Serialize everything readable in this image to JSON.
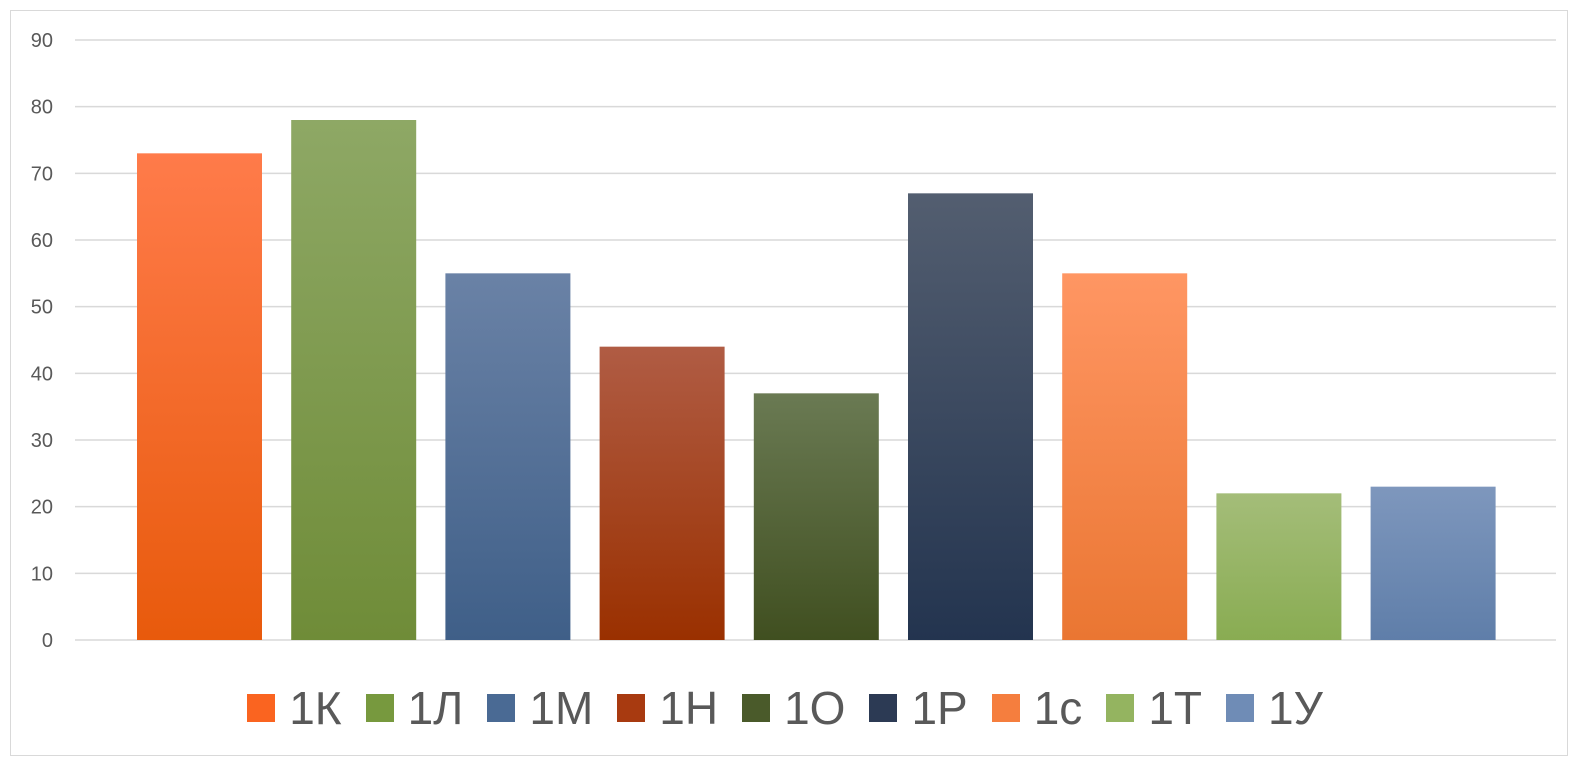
{
  "chart_data": {
    "type": "bar",
    "categories": [
      "1К",
      "1Л",
      "1М",
      "1Н",
      "1О",
      "1Р",
      "1с",
      "1Т",
      "1У"
    ],
    "values": [
      73,
      78,
      55,
      44,
      37,
      67,
      55,
      22,
      23
    ],
    "ylim": [
      0,
      90
    ],
    "yticks": [
      0,
      10,
      20,
      30,
      40,
      50,
      60,
      70,
      80,
      90
    ],
    "grid": true,
    "legend_position": "bottom",
    "colors": [
      {
        "top": "#ff7b4a",
        "bottom": "#e85a0c"
      },
      {
        "top": "#8ea865",
        "bottom": "#6f8c38"
      },
      {
        "top": "#6a82a6",
        "bottom": "#3f5f88"
      },
      {
        "top": "#b05c44",
        "bottom": "#9a3000"
      },
      {
        "top": "#6a7a53",
        "bottom": "#404f20"
      },
      {
        "top": "#535e70",
        "bottom": "#23344f"
      },
      {
        "top": "#ff9663",
        "bottom": "#ea7632"
      },
      {
        "top": "#a4bd79",
        "bottom": "#89ac52"
      },
      {
        "top": "#7e97bd",
        "bottom": "#5f7ea9"
      }
    ],
    "legend_swatches": [
      "#fa6420",
      "#77993e",
      "#4a6a94",
      "#a83a10",
      "#4a5a2a",
      "#2c3a54",
      "#f57e3e",
      "#94b460",
      "#6f8cb6"
    ]
  }
}
